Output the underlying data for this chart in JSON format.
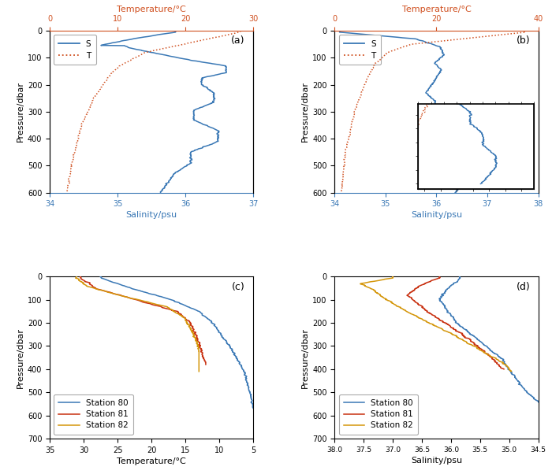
{
  "panel_a": {
    "title_top": "Temperature/°C",
    "xlabel": "Salinity/psu",
    "ylabel": "Pressure/dbar",
    "xlim": [
      34,
      37
    ],
    "ylim": [
      600,
      0
    ],
    "temp_xlim": [
      0,
      30
    ],
    "label": "(a)"
  },
  "panel_b": {
    "title_top": "Temperature/°C",
    "xlabel": "Salinity/psu",
    "ylabel": "Pressure/dbar",
    "xlim": [
      34,
      38
    ],
    "ylim": [
      600,
      0
    ],
    "temp_xlim": [
      0,
      40
    ],
    "label": "(b)"
  },
  "panel_c": {
    "xlabel": "Temperature/°C",
    "ylabel": "Pressure/dbar",
    "xlim": [
      35,
      5
    ],
    "ylim": [
      700,
      0
    ],
    "label": "(c)"
  },
  "panel_d": {
    "xlabel": "Salinity/psu",
    "ylabel": "Pressure/dbar",
    "xlim": [
      38.0,
      34.5
    ],
    "ylim": [
      700,
      0
    ],
    "label": "(d)"
  },
  "colors": {
    "salinity": "#3a78b5",
    "temperature": "#d05020",
    "station80": "#3a78b5",
    "station81": "#c83010",
    "station82": "#d4960a",
    "legend_border": "#888888"
  }
}
